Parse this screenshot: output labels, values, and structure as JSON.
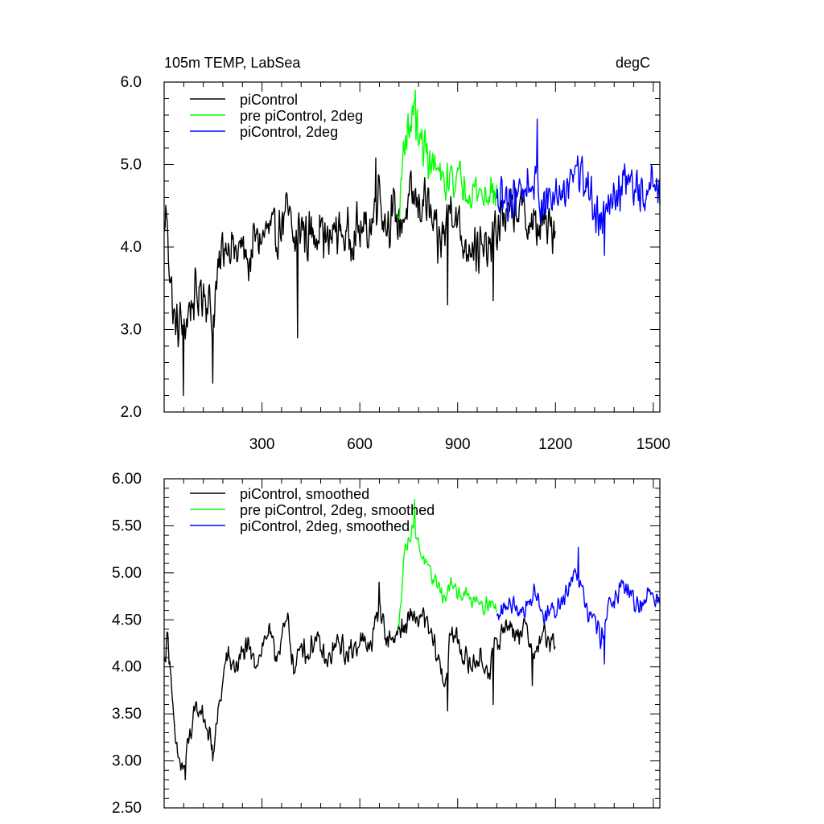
{
  "chart_data": [
    {
      "type": "line",
      "title": "105m TEMP, LabSea",
      "units": "degC",
      "xlim": [
        0,
        1520
      ],
      "ylim": [
        2.0,
        6.0
      ],
      "xticks": [
        300,
        600,
        900,
        1200,
        1500
      ],
      "xtick_labels": [
        "300",
        "600",
        "900",
        "1200",
        "1500"
      ],
      "yticks": [
        2.0,
        3.0,
        4.0,
        5.0,
        6.0
      ],
      "ytick_labels": [
        "2.0",
        "3.0",
        "4.0",
        "5.0",
        "6.0"
      ],
      "legend": "top-left",
      "series": [
        {
          "name": "piControl",
          "color": "#000000",
          "x_start": 1,
          "x_end": 1200,
          "anchors": [
            [
              1,
              4.1
            ],
            [
              5,
              4.5
            ],
            [
              10,
              4.2
            ],
            [
              20,
              3.6
            ],
            [
              30,
              3.1
            ],
            [
              40,
              3.0
            ],
            [
              50,
              3.1
            ],
            [
              60,
              3.0
            ],
            [
              80,
              3.3
            ],
            [
              100,
              3.4
            ],
            [
              120,
              3.5
            ],
            [
              140,
              3.3
            ],
            [
              150,
              3.1
            ],
            [
              160,
              3.5
            ],
            [
              180,
              4.0
            ],
            [
              200,
              4.1
            ],
            [
              220,
              3.9
            ],
            [
              240,
              4.0
            ],
            [
              260,
              3.8
            ],
            [
              280,
              4.1
            ],
            [
              300,
              4.1
            ],
            [
              320,
              4.2
            ],
            [
              340,
              4.1
            ],
            [
              360,
              4.3
            ],
            [
              380,
              4.4
            ],
            [
              400,
              4.0
            ],
            [
              420,
              4.3
            ],
            [
              440,
              4.1
            ],
            [
              460,
              4.2
            ],
            [
              480,
              4.3
            ],
            [
              500,
              4.0
            ],
            [
              520,
              4.2
            ],
            [
              540,
              4.2
            ],
            [
              560,
              4.1
            ],
            [
              580,
              4.2
            ],
            [
              600,
              4.2
            ],
            [
              620,
              4.2
            ],
            [
              640,
              4.3
            ],
            [
              650,
              4.6
            ],
            [
              660,
              4.8
            ],
            [
              670,
              4.4
            ],
            [
              680,
              4.3
            ],
            [
              700,
              4.4
            ],
            [
              720,
              4.3
            ],
            [
              740,
              4.4
            ],
            [
              760,
              4.6
            ],
            [
              780,
              4.5
            ],
            [
              800,
              4.6
            ],
            [
              820,
              4.3
            ],
            [
              840,
              4.0
            ],
            [
              860,
              4.2
            ],
            [
              880,
              4.6
            ],
            [
              900,
              4.3
            ],
            [
              920,
              4.0
            ],
            [
              940,
              4.1
            ],
            [
              960,
              4.0
            ],
            [
              980,
              3.9
            ],
            [
              1000,
              4.0
            ],
            [
              1020,
              4.2
            ],
            [
              1040,
              4.4
            ],
            [
              1060,
              4.4
            ],
            [
              1080,
              4.5
            ],
            [
              1100,
              4.4
            ],
            [
              1120,
              4.3
            ],
            [
              1140,
              4.2
            ],
            [
              1160,
              4.3
            ],
            [
              1180,
              4.2
            ],
            [
              1200,
              4.3
            ]
          ],
          "noise": 0.38,
          "dips": [
            [
              60,
              2.2
            ],
            [
              150,
              2.35
            ],
            [
              410,
              2.9
            ],
            [
              870,
              3.3
            ],
            [
              1010,
              3.35
            ]
          ],
          "peaks": [
            [
              650,
              5.08
            ]
          ]
        },
        {
          "name": "pre piControl, 2deg",
          "color": "#00ff00",
          "x_start": 720,
          "x_end": 1020,
          "anchors": [
            [
              720,
              4.3
            ],
            [
              735,
              5.3
            ],
            [
              750,
              5.4
            ],
            [
              765,
              5.7
            ],
            [
              780,
              5.3
            ],
            [
              800,
              5.2
            ],
            [
              820,
              5.0
            ],
            [
              840,
              4.9
            ],
            [
              860,
              4.7
            ],
            [
              880,
              4.9
            ],
            [
              900,
              4.8
            ],
            [
              920,
              4.8
            ],
            [
              940,
              4.7
            ],
            [
              960,
              4.7
            ],
            [
              980,
              4.6
            ],
            [
              1000,
              4.7
            ],
            [
              1020,
              4.6
            ]
          ],
          "noise": 0.3,
          "dips": [],
          "peaks": [
            [
              770,
              5.9
            ]
          ]
        },
        {
          "name": "piControl, 2deg",
          "color": "#0000ff",
          "x_start": 1020,
          "x_end": 1520,
          "anchors": [
            [
              1020,
              4.5
            ],
            [
              1060,
              4.6
            ],
            [
              1100,
              4.7
            ],
            [
              1140,
              4.8
            ],
            [
              1160,
              4.5
            ],
            [
              1200,
              4.6
            ],
            [
              1240,
              4.8
            ],
            [
              1260,
              5.0
            ],
            [
              1280,
              4.9
            ],
            [
              1300,
              4.7
            ],
            [
              1320,
              4.5
            ],
            [
              1340,
              4.3
            ],
            [
              1360,
              4.7
            ],
            [
              1380,
              4.6
            ],
            [
              1400,
              4.7
            ],
            [
              1420,
              4.8
            ],
            [
              1440,
              4.7
            ],
            [
              1460,
              4.6
            ],
            [
              1480,
              4.7
            ],
            [
              1500,
              4.8
            ],
            [
              1520,
              4.6
            ]
          ],
          "noise": 0.34,
          "dips": [
            [
              1350,
              3.9
            ]
          ],
          "peaks": [
            [
              1145,
              5.55
            ]
          ]
        }
      ]
    },
    {
      "type": "line",
      "title": "",
      "xlim": [
        0,
        1520
      ],
      "ylim": [
        2.5,
        6.0
      ],
      "xticks": [
        300,
        600,
        900,
        1200,
        1500
      ],
      "yticks": [
        2.5,
        3.0,
        3.5,
        4.0,
        4.5,
        5.0,
        5.5,
        6.0
      ],
      "ytick_labels": [
        "2.50",
        "3.00",
        "3.50",
        "4.00",
        "4.50",
        "5.00",
        "5.50",
        "6.00"
      ],
      "legend": "top-left",
      "series": [
        {
          "name": "piControl, smoothed",
          "color": "#000000",
          "x_start": 1,
          "x_end": 1200,
          "anchors": [
            [
              1,
              4.05
            ],
            [
              10,
              4.35
            ],
            [
              20,
              4.0
            ],
            [
              30,
              3.3
            ],
            [
              40,
              3.05
            ],
            [
              60,
              2.9
            ],
            [
              80,
              3.3
            ],
            [
              100,
              3.55
            ],
            [
              120,
              3.5
            ],
            [
              150,
              3.1
            ],
            [
              170,
              3.6
            ],
            [
              190,
              4.1
            ],
            [
              220,
              4.0
            ],
            [
              250,
              4.2
            ],
            [
              280,
              4.05
            ],
            [
              300,
              4.2
            ],
            [
              320,
              4.4
            ],
            [
              340,
              4.1
            ],
            [
              360,
              4.3
            ],
            [
              380,
              4.5
            ],
            [
              400,
              3.9
            ],
            [
              420,
              4.3
            ],
            [
              440,
              4.1
            ],
            [
              460,
              4.3
            ],
            [
              480,
              4.2
            ],
            [
              500,
              4.0
            ],
            [
              520,
              4.2
            ],
            [
              540,
              4.25
            ],
            [
              560,
              4.1
            ],
            [
              580,
              4.2
            ],
            [
              600,
              4.3
            ],
            [
              620,
              4.2
            ],
            [
              640,
              4.3
            ],
            [
              660,
              4.7
            ],
            [
              680,
              4.3
            ],
            [
              700,
              4.3
            ],
            [
              720,
              4.4
            ],
            [
              740,
              4.4
            ],
            [
              760,
              4.55
            ],
            [
              780,
              4.5
            ],
            [
              800,
              4.5
            ],
            [
              820,
              4.3
            ],
            [
              840,
              4.1
            ],
            [
              860,
              3.8
            ],
            [
              880,
              4.35
            ],
            [
              900,
              4.3
            ],
            [
              920,
              4.1
            ],
            [
              940,
              4.0
            ],
            [
              960,
              4.1
            ],
            [
              980,
              4.0
            ],
            [
              1000,
              4.0
            ],
            [
              1020,
              4.25
            ],
            [
              1040,
              4.4
            ],
            [
              1060,
              4.5
            ],
            [
              1080,
              4.3
            ],
            [
              1100,
              4.45
            ],
            [
              1120,
              4.3
            ],
            [
              1140,
              4.1
            ],
            [
              1160,
              4.4
            ],
            [
              1180,
              4.2
            ],
            [
              1200,
              4.3
            ]
          ],
          "noise": 0.16,
          "dips": [
            [
              65,
              2.8
            ],
            [
              150,
              3.0
            ],
            [
              870,
              3.53
            ],
            [
              1010,
              3.6
            ],
            [
              1130,
              3.8
            ]
          ],
          "peaks": [
            [
              660,
              4.9
            ]
          ]
        },
        {
          "name": "pre piControl, 2deg, smoothed",
          "color": "#00ff00",
          "x_start": 720,
          "x_end": 1020,
          "anchors": [
            [
              720,
              4.4
            ],
            [
              735,
              5.2
            ],
            [
              750,
              5.35
            ],
            [
              765,
              5.55
            ],
            [
              780,
              5.3
            ],
            [
              800,
              5.1
            ],
            [
              820,
              4.95
            ],
            [
              840,
              4.9
            ],
            [
              860,
              4.7
            ],
            [
              880,
              4.9
            ],
            [
              900,
              4.75
            ],
            [
              920,
              4.8
            ],
            [
              940,
              4.7
            ],
            [
              960,
              4.75
            ],
            [
              980,
              4.65
            ],
            [
              1000,
              4.7
            ],
            [
              1020,
              4.6
            ]
          ],
          "noise": 0.1,
          "dips": [],
          "peaks": [
            [
              768,
              5.78
            ]
          ]
        },
        {
          "name": "piControl, 2deg, smoothed",
          "color": "#0000ff",
          "x_start": 1020,
          "x_end": 1520,
          "anchors": [
            [
              1020,
              4.5
            ],
            [
              1060,
              4.7
            ],
            [
              1100,
              4.6
            ],
            [
              1140,
              4.8
            ],
            [
              1160,
              4.55
            ],
            [
              1200,
              4.6
            ],
            [
              1240,
              4.85
            ],
            [
              1260,
              5.05
            ],
            [
              1280,
              4.9
            ],
            [
              1300,
              4.6
            ],
            [
              1320,
              4.5
            ],
            [
              1340,
              4.3
            ],
            [
              1360,
              4.65
            ],
            [
              1380,
              4.7
            ],
            [
              1400,
              4.8
            ],
            [
              1420,
              4.85
            ],
            [
              1440,
              4.7
            ],
            [
              1460,
              4.65
            ],
            [
              1480,
              4.75
            ],
            [
              1500,
              4.8
            ],
            [
              1520,
              4.65
            ]
          ],
          "noise": 0.14,
          "dips": [
            [
              1350,
              4.03
            ]
          ],
          "peaks": [
            [
              1270,
              5.27
            ]
          ]
        }
      ]
    }
  ]
}
